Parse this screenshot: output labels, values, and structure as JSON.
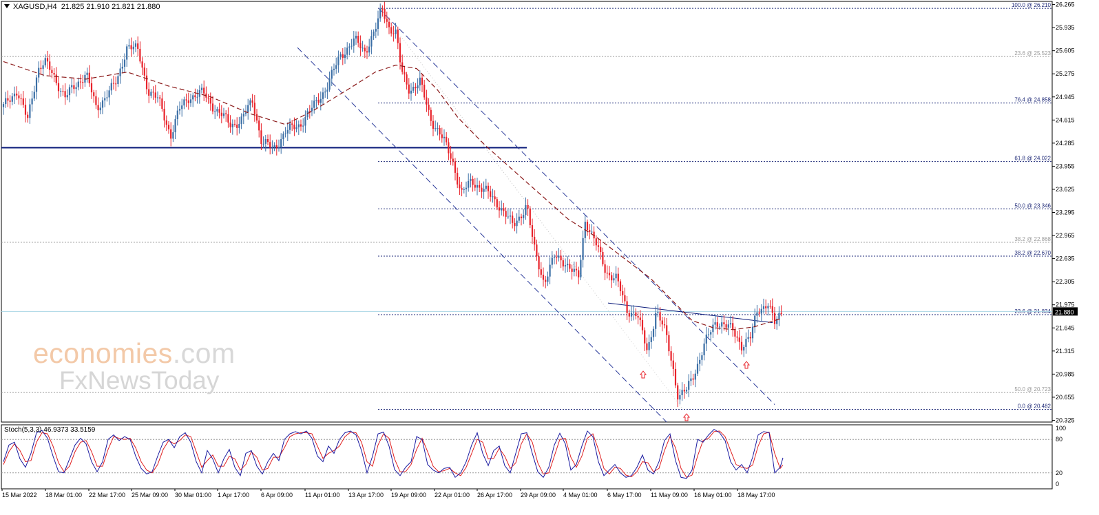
{
  "header": {
    "symbol": "XAGUSD,H4",
    "ohlc": "21.825 21.910 21.821 21.880"
  },
  "stochastic": {
    "title": "Stoch(5,3,3) 46.9373 33.5159",
    "scale_labels": [
      "100",
      "80",
      "20",
      "0"
    ],
    "levels": [
      80,
      20
    ]
  },
  "watermark": {
    "line1": "economies",
    "line1_tail": ".com",
    "line2": "FxNewsToday"
  },
  "price_axis_labels": [
    "26.265",
    "25.935",
    "25.605",
    "25.275",
    "24.945",
    "24.615",
    "24.285",
    "23.955",
    "23.625",
    "23.295",
    "22.965",
    "22.635",
    "22.305",
    "21.975",
    "21.645",
    "21.315",
    "20.985",
    "20.655",
    "20.325"
  ],
  "current_price_label": "21.880",
  "time_axis_labels": [
    "15 Mar 2022",
    "18 Mar 01:00",
    "22 Mar 17:00",
    "25 Mar 09:00",
    "30 Mar 01:00",
    "1 Apr 17:00",
    "6 Apr 09:00",
    "11 Apr 01:00",
    "13 Apr 17:00",
    "19 Apr 09:00",
    "22 Apr 01:00",
    "26 Apr 17:00",
    "29 Apr 09:00",
    "4 May 01:00",
    "6 May 17:00",
    "11 May 09:00",
    "16 May 01:00",
    "18 May 17:00"
  ],
  "colors": {
    "bull": "#3a6ea5",
    "bear": "#e8222a",
    "ma": "#8b1a1a",
    "fib_main": "#1f2a78",
    "fib_secondary": "#9a9a9a",
    "channel": "#2a3a9a",
    "support": "#0a1a7a",
    "stoch_main": "#1a1aa0",
    "stoch_signal": "#e02020",
    "arrow": "#e8222a",
    "current_price_bg": "#000000"
  },
  "chart_data": {
    "type": "candlestick",
    "symbol": "XAGUSD",
    "timeframe": "H4",
    "ylim": [
      20.3,
      26.31
    ],
    "price_path": [
      [
        0,
        24.8
      ],
      [
        20,
        25.05
      ],
      [
        35,
        24.6
      ],
      [
        50,
        25.35
      ],
      [
        60,
        25.45
      ],
      [
        75,
        25.2
      ],
      [
        90,
        24.95
      ],
      [
        105,
        25.1
      ],
      [
        120,
        25.3
      ],
      [
        135,
        24.75
      ],
      [
        150,
        25.0
      ],
      [
        165,
        25.15
      ],
      [
        180,
        25.7
      ],
      [
        195,
        25.6
      ],
      [
        210,
        25.05
      ],
      [
        225,
        24.9
      ],
      [
        243,
        24.4
      ],
      [
        255,
        24.75
      ],
      [
        270,
        24.95
      ],
      [
        290,
        25.0
      ],
      [
        310,
        24.75
      ],
      [
        330,
        24.55
      ],
      [
        345,
        24.6
      ],
      [
        362,
        24.9
      ],
      [
        375,
        24.3
      ],
      [
        392,
        24.2
      ],
      [
        410,
        24.45
      ],
      [
        430,
        24.55
      ],
      [
        450,
        24.8
      ],
      [
        470,
        25.1
      ],
      [
        490,
        25.55
      ],
      [
        510,
        25.75
      ],
      [
        525,
        25.6
      ],
      [
        540,
        25.9
      ],
      [
        550,
        26.21
      ],
      [
        560,
        25.95
      ],
      [
        570,
        25.85
      ],
      [
        578,
        25.3
      ],
      [
        590,
        25.05
      ],
      [
        605,
        25.15
      ],
      [
        620,
        24.65
      ],
      [
        640,
        24.3
      ],
      [
        652,
        24.05
      ],
      [
        665,
        23.55
      ],
      [
        680,
        23.75
      ],
      [
        700,
        23.6
      ],
      [
        720,
        23.4
      ],
      [
        740,
        23.1
      ],
      [
        760,
        23.4
      ],
      [
        770,
        22.8
      ],
      [
        785,
        22.3
      ],
      [
        800,
        22.65
      ],
      [
        815,
        22.6
      ],
      [
        835,
        22.35
      ],
      [
        845,
        23.2
      ],
      [
        860,
        22.85
      ],
      [
        875,
        22.45
      ],
      [
        890,
        22.35
      ],
      [
        905,
        21.9
      ],
      [
        920,
        21.85
      ],
      [
        935,
        21.3
      ],
      [
        948,
        21.9
      ],
      [
        962,
        21.55
      ],
      [
        972,
        21.1
      ],
      [
        980,
        20.65
      ],
      [
        992,
        20.75
      ],
      [
        1005,
        21.05
      ],
      [
        1020,
        21.45
      ],
      [
        1035,
        21.75
      ],
      [
        1045,
        21.7
      ],
      [
        1060,
        21.6
      ],
      [
        1072,
        21.4
      ],
      [
        1085,
        21.5
      ],
      [
        1095,
        21.9
      ],
      [
        1110,
        22.0
      ],
      [
        1120,
        21.7
      ],
      [
        1130,
        21.88
      ]
    ],
    "moving_average_path": [
      [
        0,
        25.45
      ],
      [
        60,
        25.25
      ],
      [
        120,
        25.2
      ],
      [
        180,
        25.3
      ],
      [
        240,
        25.1
      ],
      [
        300,
        24.95
      ],
      [
        360,
        24.7
      ],
      [
        410,
        24.55
      ],
      [
        450,
        24.75
      ],
      [
        500,
        25.05
      ],
      [
        540,
        25.3
      ],
      [
        570,
        25.4
      ],
      [
        600,
        25.35
      ],
      [
        630,
        25.05
      ],
      [
        660,
        24.65
      ],
      [
        700,
        24.25
      ],
      [
        740,
        23.9
      ],
      [
        780,
        23.55
      ],
      [
        820,
        23.2
      ],
      [
        860,
        22.95
      ],
      [
        900,
        22.65
      ],
      [
        940,
        22.35
      ],
      [
        970,
        22.05
      ],
      [
        1000,
        21.75
      ],
      [
        1030,
        21.65
      ],
      [
        1060,
        21.62
      ],
      [
        1090,
        21.66
      ],
      [
        1120,
        21.75
      ],
      [
        1130,
        21.78
      ]
    ],
    "fibonacci_main": [
      {
        "label": "100.0 @ 26.210",
        "price": 26.21
      },
      {
        "label": "76.4 @ 24.858",
        "price": 24.858
      },
      {
        "label": "61.8 @ 24.022",
        "price": 24.022
      },
      {
        "label": "50.0 @ 23.346",
        "price": 23.346
      },
      {
        "label": "38.2 @ 22.670",
        "price": 22.67
      },
      {
        "label": "23.6 @ 21.834",
        "price": 21.834
      },
      {
        "label": "0.0 @ 20.482",
        "price": 20.482
      }
    ],
    "fibonacci_secondary": [
      {
        "label": "23.6 @ 25.523",
        "price": 25.523
      },
      {
        "label": "38.2 @ 22.868",
        "price": 22.868
      },
      {
        "label": "50.0 @ 20.723",
        "price": 20.723
      }
    ],
    "horizontal_support": 24.22,
    "current_price": 21.88,
    "stochastic_k": [
      [
        0,
        40
      ],
      [
        8,
        70
      ],
      [
        16,
        75
      ],
      [
        24,
        45
      ],
      [
        32,
        30
      ],
      [
        40,
        55
      ],
      [
        48,
        92
      ],
      [
        56,
        96
      ],
      [
        64,
        82
      ],
      [
        72,
        50
      ],
      [
        80,
        22
      ],
      [
        88,
        20
      ],
      [
        96,
        45
      ],
      [
        104,
        70
      ],
      [
        112,
        82
      ],
      [
        120,
        72
      ],
      [
        128,
        40
      ],
      [
        136,
        22
      ],
      [
        144,
        40
      ],
      [
        152,
        80
      ],
      [
        160,
        88
      ],
      [
        168,
        78
      ],
      [
        176,
        85
      ],
      [
        184,
        80
      ],
      [
        192,
        50
      ],
      [
        200,
        28
      ],
      [
        208,
        18
      ],
      [
        216,
        22
      ],
      [
        224,
        50
      ],
      [
        232,
        75
      ],
      [
        240,
        80
      ],
      [
        248,
        65
      ],
      [
        256,
        85
      ],
      [
        264,
        92
      ],
      [
        272,
        75
      ],
      [
        280,
        40
      ],
      [
        288,
        20
      ],
      [
        296,
        60
      ],
      [
        304,
        45
      ],
      [
        312,
        20
      ],
      [
        320,
        45
      ],
      [
        328,
        62
      ],
      [
        336,
        30
      ],
      [
        344,
        15
      ],
      [
        352,
        55
      ],
      [
        360,
        60
      ],
      [
        368,
        32
      ],
      [
        376,
        18
      ],
      [
        384,
        40
      ],
      [
        392,
        55
      ],
      [
        400,
        42
      ],
      [
        408,
        80
      ],
      [
        416,
        90
      ],
      [
        424,
        94
      ],
      [
        432,
        90
      ],
      [
        440,
        95
      ],
      [
        448,
        82
      ],
      [
        456,
        50
      ],
      [
        464,
        40
      ],
      [
        472,
        68
      ],
      [
        480,
        55
      ],
      [
        488,
        80
      ],
      [
        496,
        92
      ],
      [
        504,
        95
      ],
      [
        512,
        88
      ],
      [
        520,
        60
      ],
      [
        528,
        20
      ],
      [
        536,
        50
      ],
      [
        544,
        90
      ],
      [
        552,
        93
      ],
      [
        560,
        68
      ],
      [
        568,
        26
      ],
      [
        576,
        15
      ],
      [
        584,
        30
      ],
      [
        592,
        40
      ],
      [
        600,
        85
      ],
      [
        608,
        80
      ],
      [
        616,
        35
      ],
      [
        624,
        25
      ],
      [
        632,
        20
      ],
      [
        640,
        28
      ],
      [
        648,
        30
      ],
      [
        656,
        12
      ],
      [
        664,
        20
      ],
      [
        672,
        40
      ],
      [
        680,
        70
      ],
      [
        688,
        92
      ],
      [
        696,
        55
      ],
      [
        704,
        33
      ],
      [
        712,
        60
      ],
      [
        720,
        68
      ],
      [
        728,
        33
      ],
      [
        736,
        20
      ],
      [
        744,
        55
      ],
      [
        752,
        90
      ],
      [
        760,
        92
      ],
      [
        768,
        55
      ],
      [
        776,
        22
      ],
      [
        784,
        12
      ],
      [
        792,
        30
      ],
      [
        800,
        70
      ],
      [
        808,
        91
      ],
      [
        816,
        72
      ],
      [
        824,
        25
      ],
      [
        832,
        35
      ],
      [
        840,
        68
      ],
      [
        848,
        95
      ],
      [
        856,
        85
      ],
      [
        864,
        40
      ],
      [
        872,
        15
      ],
      [
        880,
        25
      ],
      [
        888,
        35
      ],
      [
        896,
        20
      ],
      [
        904,
        12
      ],
      [
        912,
        15
      ],
      [
        920,
        30
      ],
      [
        928,
        52
      ],
      [
        936,
        25
      ],
      [
        944,
        18
      ],
      [
        952,
        40
      ],
      [
        960,
        78
      ],
      [
        968,
        90
      ],
      [
        976,
        42
      ],
      [
        984,
        12
      ],
      [
        992,
        10
      ],
      [
        1000,
        25
      ],
      [
        1008,
        80
      ],
      [
        1016,
        75
      ],
      [
        1024,
        88
      ],
      [
        1032,
        98
      ],
      [
        1040,
        92
      ],
      [
        1048,
        78
      ],
      [
        1056,
        40
      ],
      [
        1064,
        25
      ],
      [
        1072,
        35
      ],
      [
        1080,
        20
      ],
      [
        1088,
        48
      ],
      [
        1096,
        88
      ],
      [
        1104,
        94
      ],
      [
        1112,
        92
      ],
      [
        1120,
        20
      ],
      [
        1128,
        30
      ],
      [
        1132,
        47
      ]
    ],
    "stochastic_d": [
      [
        0,
        35
      ],
      [
        8,
        58
      ],
      [
        16,
        72
      ],
      [
        24,
        60
      ],
      [
        32,
        40
      ],
      [
        40,
        42
      ],
      [
        48,
        75
      ],
      [
        56,
        92
      ],
      [
        64,
        90
      ],
      [
        72,
        68
      ],
      [
        80,
        38
      ],
      [
        88,
        22
      ],
      [
        96,
        32
      ],
      [
        104,
        58
      ],
      [
        112,
        75
      ],
      [
        120,
        78
      ],
      [
        128,
        58
      ],
      [
        136,
        32
      ],
      [
        144,
        32
      ],
      [
        152,
        62
      ],
      [
        160,
        85
      ],
      [
        168,
        82
      ],
      [
        176,
        80
      ],
      [
        184,
        82
      ],
      [
        192,
        65
      ],
      [
        200,
        40
      ],
      [
        208,
        25
      ],
      [
        216,
        20
      ],
      [
        224,
        35
      ],
      [
        232,
        62
      ],
      [
        240,
        78
      ],
      [
        248,
        72
      ],
      [
        256,
        78
      ],
      [
        264,
        88
      ],
      [
        272,
        85
      ],
      [
        280,
        58
      ],
      [
        288,
        30
      ],
      [
        296,
        42
      ],
      [
        304,
        52
      ],
      [
        312,
        32
      ],
      [
        320,
        32
      ],
      [
        328,
        50
      ],
      [
        336,
        45
      ],
      [
        344,
        25
      ],
      [
        352,
        35
      ],
      [
        360,
        58
      ],
      [
        368,
        48
      ],
      [
        376,
        25
      ],
      [
        384,
        28
      ],
      [
        392,
        48
      ],
      [
        400,
        48
      ],
      [
        408,
        65
      ],
      [
        416,
        85
      ],
      [
        424,
        90
      ],
      [
        432,
        92
      ],
      [
        440,
        92
      ],
      [
        448,
        90
      ],
      [
        456,
        68
      ],
      [
        464,
        46
      ],
      [
        472,
        55
      ],
      [
        480,
        60
      ],
      [
        488,
        68
      ],
      [
        496,
        85
      ],
      [
        504,
        93
      ],
      [
        512,
        92
      ],
      [
        520,
        75
      ],
      [
        528,
        40
      ],
      [
        536,
        32
      ],
      [
        544,
        70
      ],
      [
        552,
        90
      ],
      [
        560,
        82
      ],
      [
        568,
        45
      ],
      [
        576,
        22
      ],
      [
        584,
        22
      ],
      [
        592,
        35
      ],
      [
        600,
        62
      ],
      [
        608,
        82
      ],
      [
        616,
        58
      ],
      [
        624,
        32
      ],
      [
        632,
        22
      ],
      [
        640,
        24
      ],
      [
        648,
        28
      ],
      [
        656,
        20
      ],
      [
        664,
        15
      ],
      [
        672,
        30
      ],
      [
        680,
        55
      ],
      [
        688,
        80
      ],
      [
        696,
        75
      ],
      [
        704,
        45
      ],
      [
        712,
        46
      ],
      [
        720,
        64
      ],
      [
        728,
        50
      ],
      [
        736,
        28
      ],
      [
        744,
        38
      ],
      [
        752,
        72
      ],
      [
        760,
        90
      ],
      [
        768,
        75
      ],
      [
        776,
        38
      ],
      [
        784,
        18
      ],
      [
        792,
        20
      ],
      [
        800,
        50
      ],
      [
        808,
        80
      ],
      [
        816,
        82
      ],
      [
        824,
        48
      ],
      [
        832,
        30
      ],
      [
        840,
        50
      ],
      [
        848,
        82
      ],
      [
        856,
        90
      ],
      [
        864,
        62
      ],
      [
        872,
        28
      ],
      [
        880,
        18
      ],
      [
        888,
        30
      ],
      [
        896,
        28
      ],
      [
        904,
        16
      ],
      [
        912,
        13
      ],
      [
        920,
        22
      ],
      [
        928,
        40
      ],
      [
        936,
        38
      ],
      [
        944,
        22
      ],
      [
        952,
        28
      ],
      [
        960,
        60
      ],
      [
        968,
        85
      ],
      [
        976,
        65
      ],
      [
        984,
        28
      ],
      [
        992,
        12
      ],
      [
        1000,
        16
      ],
      [
        1008,
        50
      ],
      [
        1016,
        78
      ],
      [
        1024,
        82
      ],
      [
        1032,
        94
      ],
      [
        1040,
        95
      ],
      [
        1048,
        85
      ],
      [
        1056,
        60
      ],
      [
        1064,
        35
      ],
      [
        1072,
        30
      ],
      [
        1080,
        28
      ],
      [
        1088,
        34
      ],
      [
        1096,
        68
      ],
      [
        1104,
        90
      ],
      [
        1112,
        93
      ],
      [
        1120,
        55
      ],
      [
        1128,
        28
      ],
      [
        1132,
        34
      ]
    ]
  }
}
